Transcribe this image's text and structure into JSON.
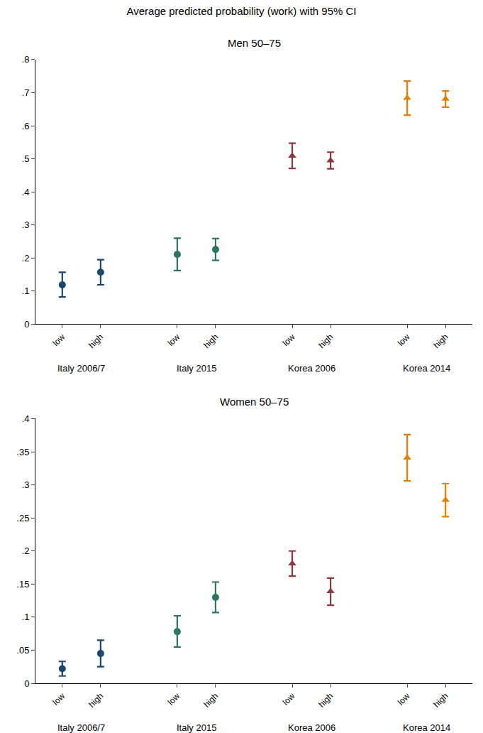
{
  "title": "Average predicted probability (work) with 95% CI",
  "chart_data": [
    {
      "type": "scatter",
      "title": "Men 50–75",
      "grid": false,
      "categories": [
        "low",
        "high"
      ],
      "ylim": [
        0,
        0.8
      ],
      "yticks": [
        0,
        {
          "value": 0.1,
          "label": ".1"
        },
        {
          "value": 0.2,
          "label": ".2"
        },
        {
          "value": 0.3,
          "label": ".3"
        },
        {
          "value": 0.4,
          "label": ".4"
        },
        {
          "value": 0.5,
          "label": ".5"
        },
        {
          "value": 0.6,
          "label": ".6"
        },
        {
          "value": 0.7,
          "label": ".7"
        },
        {
          "value": 0.8,
          "label": ".8"
        }
      ],
      "series": [
        {
          "name": "Italy 2006/7",
          "color": "#1a476f",
          "marker": "circle",
          "values": [
            0.119,
            0.157
          ],
          "ci_lower": [
            0.082,
            0.119
          ],
          "ci_upper": [
            0.157,
            0.195
          ]
        },
        {
          "name": "Italy 2015",
          "color": "#2a7566",
          "marker": "circle",
          "values": [
            0.211,
            0.226
          ],
          "ci_lower": [
            0.162,
            0.193
          ],
          "ci_upper": [
            0.26,
            0.259
          ]
        },
        {
          "name": "Korea 2006",
          "color": "#90353b",
          "marker": "triangle",
          "values": [
            0.509,
            0.495
          ],
          "ci_lower": [
            0.471,
            0.47
          ],
          "ci_upper": [
            0.547,
            0.52
          ]
        },
        {
          "name": "Korea 2014",
          "color": "#e37e00",
          "marker": "triangle",
          "values": [
            0.684,
            0.681
          ],
          "ci_lower": [
            0.632,
            0.656
          ],
          "ci_upper": [
            0.735,
            0.705
          ]
        }
      ]
    },
    {
      "type": "scatter",
      "title": "Women 50–75",
      "grid": false,
      "categories": [
        "low",
        "high"
      ],
      "ylim": [
        0,
        0.4
      ],
      "yticks": [
        0,
        {
          "value": 0.05,
          "label": ".05"
        },
        {
          "value": 0.1,
          "label": ".1"
        },
        {
          "value": 0.15,
          "label": ".15"
        },
        {
          "value": 0.2,
          "label": ".2"
        },
        {
          "value": 0.25,
          "label": ".25"
        },
        {
          "value": 0.3,
          "label": ".3"
        },
        {
          "value": 0.35,
          "label": ".35"
        },
        {
          "value": 0.4,
          "label": ".4"
        }
      ],
      "series": [
        {
          "name": "Italy 2006/7",
          "color": "#1a476f",
          "marker": "circle",
          "values": [
            0.022,
            0.045
          ],
          "ci_lower": [
            0.011,
            0.025
          ],
          "ci_upper": [
            0.033,
            0.065
          ]
        },
        {
          "name": "Italy 2015",
          "color": "#2a7566",
          "marker": "circle",
          "values": [
            0.078,
            0.13
          ],
          "ci_lower": [
            0.055,
            0.107
          ],
          "ci_upper": [
            0.102,
            0.153
          ]
        },
        {
          "name": "Korea 2006",
          "color": "#90353b",
          "marker": "triangle",
          "values": [
            0.181,
            0.139
          ],
          "ci_lower": [
            0.162,
            0.118
          ],
          "ci_upper": [
            0.2,
            0.159
          ]
        },
        {
          "name": "Korea 2014",
          "color": "#e37e00",
          "marker": "triangle",
          "values": [
            0.341,
            0.277
          ],
          "ci_lower": [
            0.306,
            0.252
          ],
          "ci_upper": [
            0.376,
            0.302
          ]
        }
      ]
    }
  ]
}
